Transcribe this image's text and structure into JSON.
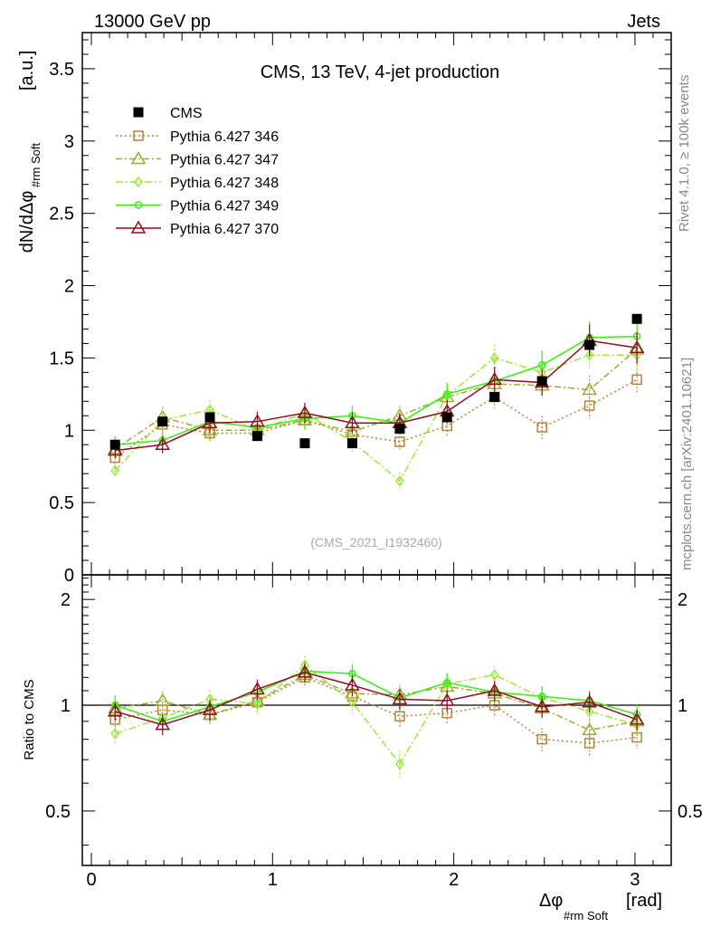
{
  "header": {
    "left": "13000 GeV pp",
    "right": "Jets"
  },
  "side_labels": {
    "rivet": "Rivet 4.1.0, ≥ 100k events",
    "mcplots": "mcplots.cern.ch [arXiv:2401.10621]"
  },
  "chart_data": {
    "type": "line",
    "title": "CMS, 13 TeV, 4-jet production",
    "watermark": "(CMS_2021_I1932460)",
    "ylabel_main": "dN/dΔφ",
    "ylabel_main_sub": "#rm Soft",
    "ylabel_main_unit": "[a.u.]",
    "ylabel_ratio": "Ratio to CMS",
    "xlabel": "Δφ",
    "xlabel_sub": "#rm Soft",
    "xlabel_unit": "[rad]",
    "xlim": [
      -0.05,
      3.2
    ],
    "ylim_main": [
      0,
      3.75
    ],
    "ylim_ratio": [
      0.35,
      2.35
    ],
    "xticks": [
      0,
      1,
      2,
      3
    ],
    "yticks_main": [
      "0",
      "0.5",
      "1",
      "1.5",
      "2",
      "2.5",
      "3",
      "3.5"
    ],
    "yticks_ratio": [
      "0.5",
      "1",
      "2"
    ],
    "x": [
      0.131,
      0.393,
      0.654,
      0.916,
      1.178,
      1.44,
      1.702,
      1.963,
      2.225,
      2.487,
      2.749,
      3.011
    ],
    "data": {
      "name": "CMS",
      "values": [
        0.9,
        1.06,
        1.09,
        0.96,
        0.91,
        0.91,
        1.01,
        1.09,
        1.23,
        1.34,
        1.59,
        1.77
      ]
    },
    "series": [
      {
        "name": "Pythia 6.427 346",
        "color": "#b5823c",
        "values": [
          0.81,
          1.04,
          0.98,
          0.98,
          1.07,
          0.97,
          0.92,
          1.03,
          1.23,
          1.02,
          1.17,
          1.35
        ],
        "errors": [
          0.05,
          0.06,
          0.06,
          0.06,
          0.06,
          0.06,
          0.06,
          0.07,
          0.08,
          0.08,
          0.09,
          0.1
        ]
      },
      {
        "name": "Pythia 6.427 347",
        "color": "#a3a832",
        "values": [
          0.87,
          1.09,
          1.0,
          1.0,
          1.07,
          0.99,
          1.1,
          1.23,
          1.32,
          1.31,
          1.28,
          1.56
        ],
        "errors": [
          0.05,
          0.07,
          0.07,
          0.07,
          0.07,
          0.07,
          0.07,
          0.08,
          0.09,
          0.09,
          0.1,
          0.11
        ]
      },
      {
        "name": "Pythia 6.427 348",
        "color": "#9ee63a",
        "values": [
          0.72,
          1.07,
          1.14,
          1.0,
          1.12,
          0.92,
          0.65,
          1.24,
          1.5,
          1.4,
          1.52,
          1.52
        ],
        "errors": [
          0.05,
          0.07,
          0.07,
          0.07,
          0.07,
          0.07,
          0.06,
          0.08,
          0.09,
          0.09,
          0.1,
          0.11
        ]
      },
      {
        "name": "Pythia 6.427 349",
        "color": "#3aee14",
        "values": [
          0.9,
          0.93,
          1.06,
          1.02,
          1.08,
          1.1,
          1.05,
          1.25,
          1.34,
          1.45,
          1.64,
          1.65
        ],
        "errors": [
          0.06,
          0.06,
          0.07,
          0.07,
          0.07,
          0.07,
          0.07,
          0.08,
          0.09,
          0.1,
          0.11,
          0.12
        ]
      },
      {
        "name": "Pythia 6.427 370",
        "color": "#8c1020",
        "values": [
          0.86,
          0.9,
          1.05,
          1.06,
          1.12,
          1.05,
          1.05,
          1.13,
          1.35,
          1.33,
          1.62,
          1.57
        ],
        "errors": [
          0.05,
          0.06,
          0.07,
          0.07,
          0.07,
          0.07,
          0.07,
          0.08,
          0.09,
          0.09,
          0.11,
          0.11
        ]
      }
    ],
    "ratio_series": [
      {
        "name": "Pythia 6.427 346",
        "values": [
          0.91,
          0.97,
          0.94,
          1.02,
          1.2,
          1.06,
          0.93,
          0.95,
          1.0,
          0.8,
          0.78,
          0.81
        ]
      },
      {
        "name": "Pythia 6.427 347",
        "values": [
          0.98,
          1.03,
          0.94,
          1.03,
          1.22,
          1.08,
          1.07,
          1.13,
          1.08,
          0.98,
          0.85,
          0.9
        ]
      },
      {
        "name": "Pythia 6.427 348",
        "values": [
          0.83,
          0.92,
          1.04,
          1.01,
          1.3,
          1.02,
          0.68,
          1.15,
          1.22,
          1.05,
          0.96,
          0.88
        ]
      },
      {
        "name": "Pythia 6.427 349",
        "values": [
          1.0,
          0.9,
          0.99,
          1.09,
          1.25,
          1.23,
          1.05,
          1.16,
          1.09,
          1.06,
          1.03,
          0.94
        ]
      },
      {
        "name": "Pythia 6.427 370",
        "values": [
          0.96,
          0.88,
          0.97,
          1.11,
          1.24,
          1.14,
          1.04,
          1.03,
          1.1,
          0.99,
          1.02,
          0.91
        ]
      }
    ]
  }
}
